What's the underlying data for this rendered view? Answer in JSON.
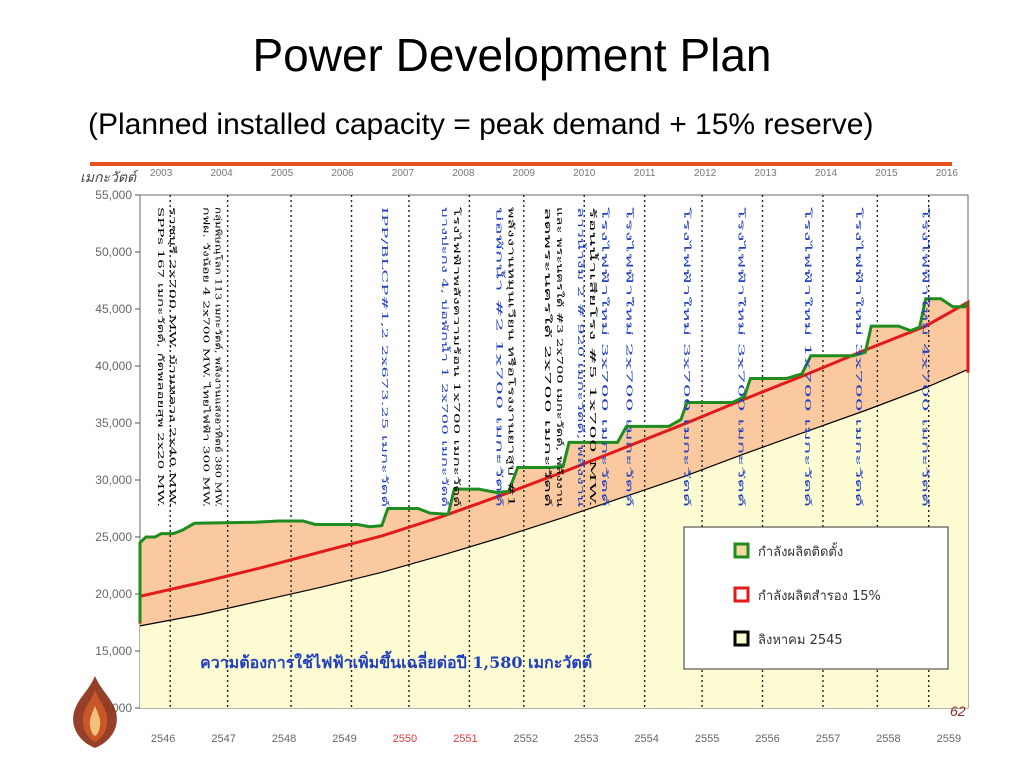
{
  "slide": {
    "title": "Power Development Plan",
    "subtitle": "(Planned installed capacity = peak demand + 15% reserve)",
    "number": "62"
  },
  "colors": {
    "installed": "#1e8c1e",
    "reserve": "#e31a1a",
    "demand_fill": "#fdfbd2",
    "reserve_fill": "#fbc9a0",
    "rule": "#e8521f",
    "annotation_blue": "#1f3fbf",
    "annotation_black": "#000000",
    "highlight_year": "#e33b3b"
  },
  "chart_data": {
    "type": "area",
    "ylabel": "เมกะวัตต์",
    "ylim": [
      10000,
      55000
    ],
    "yticks": [
      10000,
      15000,
      20000,
      25000,
      30000,
      35000,
      40000,
      45000,
      50000,
      55000
    ],
    "ytick_labels": [
      "10,000",
      "15,000",
      "20,000",
      "25,000",
      "30,000",
      "35,000",
      "40,000",
      "45,000",
      "50,000",
      "55,000"
    ],
    "years_ad": [
      "2003",
      "2004",
      "2005",
      "2006",
      "2007",
      "2008",
      "2009",
      "2010",
      "2011",
      "2012",
      "2013",
      "2014",
      "2015",
      "2016"
    ],
    "years_be": [
      "2546",
      "2547",
      "2548",
      "2549",
      "2550",
      "2551",
      "2552",
      "2553",
      "2554",
      "2555",
      "2556",
      "2557",
      "2558",
      "2559"
    ],
    "highlighted_years_be": [
      "2550",
      "2551"
    ],
    "x": [
      2003,
      2016
    ],
    "series": [
      {
        "name": "กำลังผลิตติดตั้ง",
        "key": "installed",
        "points": [
          [
            2003.0,
            17500
          ],
          [
            2003.0,
            24500
          ],
          [
            2003.1,
            25000
          ],
          [
            2003.25,
            25000
          ],
          [
            2003.35,
            25300
          ],
          [
            2003.55,
            25300
          ],
          [
            2003.7,
            25600
          ],
          [
            2003.9,
            26200
          ],
          [
            2004.9,
            26300
          ],
          [
            2005.3,
            26400
          ],
          [
            2005.7,
            26400
          ],
          [
            2005.9,
            26100
          ],
          [
            2006.6,
            26100
          ],
          [
            2006.8,
            25900
          ],
          [
            2007.0,
            26000
          ],
          [
            2007.1,
            27500
          ],
          [
            2007.6,
            27500
          ],
          [
            2007.8,
            27100
          ],
          [
            2008.1,
            27000
          ],
          [
            2008.2,
            29200
          ],
          [
            2008.6,
            29200
          ],
          [
            2008.9,
            28900
          ],
          [
            2009.1,
            29000
          ],
          [
            2009.25,
            31100
          ],
          [
            2009.8,
            31100
          ],
          [
            2010.0,
            31200
          ],
          [
            2010.1,
            33300
          ],
          [
            2010.65,
            33300
          ],
          [
            2010.9,
            33300
          ],
          [
            2011.05,
            34700
          ],
          [
            2011.75,
            34700
          ],
          [
            2011.95,
            35300
          ],
          [
            2012.05,
            36800
          ],
          [
            2012.8,
            36800
          ],
          [
            2013.0,
            37300
          ],
          [
            2013.1,
            38900
          ],
          [
            2013.7,
            38900
          ],
          [
            2013.95,
            39300
          ],
          [
            2014.1,
            40900
          ],
          [
            2014.8,
            40900
          ],
          [
            2015.0,
            41200
          ],
          [
            2015.1,
            43500
          ],
          [
            2015.55,
            43500
          ],
          [
            2015.75,
            43100
          ],
          [
            2015.9,
            43400
          ],
          [
            2016.0,
            45900
          ],
          [
            2016.25,
            45900
          ],
          [
            2016.45,
            45200
          ],
          [
            2016.65,
            45200
          ],
          [
            2016.7,
            45600
          ]
        ]
      },
      {
        "name": "กำลังผลิตสำรอง 15%",
        "key": "reserve",
        "points": [
          [
            2003.0,
            17400
          ],
          [
            2003.0,
            19800
          ],
          [
            2004.0,
            21000
          ],
          [
            2005.0,
            22300
          ],
          [
            2006.0,
            23700
          ],
          [
            2007.0,
            25100
          ],
          [
            2008.0,
            26800
          ],
          [
            2009.0,
            28700
          ],
          [
            2010.0,
            30700
          ],
          [
            2011.0,
            32800
          ],
          [
            2012.0,
            34900
          ],
          [
            2013.0,
            37100
          ],
          [
            2014.0,
            39200
          ],
          [
            2015.0,
            41400
          ],
          [
            2016.0,
            43500
          ],
          [
            2016.7,
            45600
          ],
          [
            2016.7,
            39400
          ]
        ]
      },
      {
        "name": "ลิงหาคม 2545",
        "key": "demand",
        "points": [
          [
            2003.0,
            17200
          ],
          [
            2004.0,
            18200
          ],
          [
            2005.0,
            19400
          ],
          [
            2006.0,
            20600
          ],
          [
            2007.0,
            21900
          ],
          [
            2008.0,
            23400
          ],
          [
            2009.0,
            25000
          ],
          [
            2010.0,
            26700
          ],
          [
            2011.0,
            28500
          ],
          [
            2012.0,
            30300
          ],
          [
            2013.0,
            32300
          ],
          [
            2014.0,
            34200
          ],
          [
            2015.0,
            36100
          ],
          [
            2016.0,
            38100
          ],
          [
            2016.7,
            39700
          ]
        ]
      }
    ],
    "legend": {
      "placement": "bottom-right",
      "entries": [
        {
          "label": "กำลังผลิตติดตั้ง",
          "key": "installed"
        },
        {
          "label": "กำลังผลิตสำรอง 15%",
          "key": "reserve"
        },
        {
          "label": "ลิงหาคม 2545",
          "key": "demand"
        }
      ]
    },
    "annotation_main": "ความต้องการใช้ไฟฟ้าเพิ่มขึ้นเฉลี่ยต่อปี 1,580 เมกะวัตต์",
    "divider_years": [
      2003.5,
      2004.45,
      2005.5,
      2006.5,
      2007.45,
      2008.45,
      2009.35,
      2010.35,
      2011.35,
      2012.3,
      2013.3,
      2014.3,
      2015.2,
      2016.05
    ],
    "vertical_notes": [
      {
        "x": 2003.3,
        "color": "black",
        "lines": [
          "SPPs 167 เมกะวัตต์, กัดพลอยสุพ 2x20 MW.",
          "ราชบุรี 2x700 MW. บ้านหลวง 2x40 MW."
        ]
      },
      {
        "x": 2004.05,
        "color": "black",
        "lines": [
          "กฟผ. วังน้อย 4 2x700 MW. ไทยไฟฟ้า 300 MW.",
          "กลุ่มพิษณุโลก 113 เมกะวัตต์, พลังงานแสงอาทิตย์ 380 MW."
        ]
      },
      {
        "x": 2007.0,
        "color": "blue",
        "lines": [
          "IPP/BLCP#1,2 2x673.25 เมกะวัตต์"
        ]
      },
      {
        "x": 2008.0,
        "color": "mixed",
        "lines": [
          "บางปะกง 4, บ่อพักน้ำ 1 2x700 เมกะวัตต์",
          "โรงไฟฟ้าพลังความร้อน 1x700 เมกะวัตต์"
        ]
      },
      {
        "x": 2008.9,
        "color": "mixed",
        "lines": [
          "บ่อพักน้ำ #2 1x700 เมกะวัตต์",
          "พลังงานหมุนเวียน หรือโรงงานยาสูบ #1"
        ]
      },
      {
        "x": 2009.7,
        "color": "black",
        "lines": [
          "ลดพระนครใต้ 2x700 เมกะวัตต์",
          "และ พระนครใต้ #3 2x700 เมกะวัตต์, พลังงาน"
        ]
      },
      {
        "x": 2010.25,
        "color": "mixed",
        "lines": [
          "ลาวน้ำงึม 2 # 920 เมกะวัตต์, พลังงาน",
          "ร้อนน้ำเสียโรง #5 1x700 MW.",
          "โรงไฟฟ้าใหม่ 3x700 เมกะวัตต์"
        ]
      },
      {
        "x": 2011.05,
        "color": "blue",
        "lines": [
          "โรงไฟฟ้าใหม่ 2x700 เมกะวัตต์"
        ]
      },
      {
        "x": 2012.0,
        "color": "blue",
        "lines": [
          "โรงไฟฟ้าใหม่ 3x700 เมกะวัตต์"
        ]
      },
      {
        "x": 2012.9,
        "color": "blue",
        "lines": [
          "โรงไฟฟ้าใหม่ 3x700 เมกะวัตต์"
        ]
      },
      {
        "x": 2014.0,
        "color": "blue",
        "lines": [
          "โรงไฟฟ้าใหม่ 1x700 เมกะวัตต์"
        ]
      },
      {
        "x": 2014.85,
        "color": "blue",
        "lines": [
          "โรงไฟฟ้าใหม่ 3x700 เมกะวัตต์"
        ]
      },
      {
        "x": 2015.95,
        "color": "blue",
        "lines": [
          "โรงไฟฟ้าใหม่ 4x700 เมกะวัตต์"
        ]
      }
    ]
  }
}
